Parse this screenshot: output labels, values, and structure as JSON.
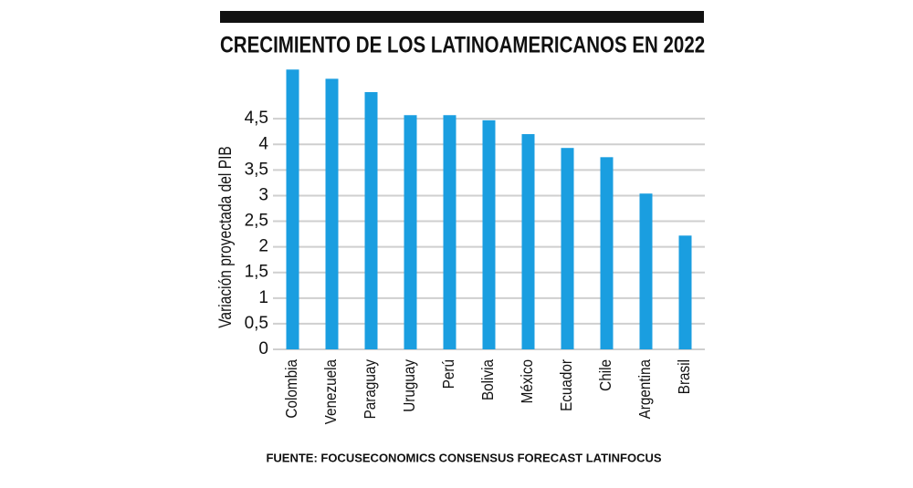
{
  "chart_data": {
    "type": "bar",
    "title": "CRECIMIENTO DE LOS LATINOAMERICANOS EN 2022",
    "y_label": "Variación proyectada del PIB",
    "source": "FUENTE: FOCUSECONOMICS CONSENSUS FORECAST LATINFOCUS",
    "categories": [
      "Colombia",
      "Venezuela",
      "Paraguay",
      "Uruguay",
      "Perú",
      "Bolivia",
      "México",
      "Ecuador",
      "Chile",
      "Argentina",
      "Brasil"
    ],
    "values": [
      5.46,
      5.28,
      5.02,
      4.57,
      4.57,
      4.47,
      4.2,
      3.93,
      3.75,
      3.04,
      2.22
    ],
    "color": "#1a9ee0",
    "ylim": [
      0,
      5.5
    ],
    "yticks": [
      0,
      {
        "value": 0.5,
        "label": "0,5"
      },
      1,
      {
        "value": 1.5,
        "label": "1,5"
      },
      2,
      {
        "value": 2.5,
        "label": "2,5"
      },
      3,
      {
        "value": 3.5,
        "label": "3,5"
      },
      4,
      {
        "value": 4.5,
        "label": "4,5"
      }
    ],
    "grid": true
  }
}
